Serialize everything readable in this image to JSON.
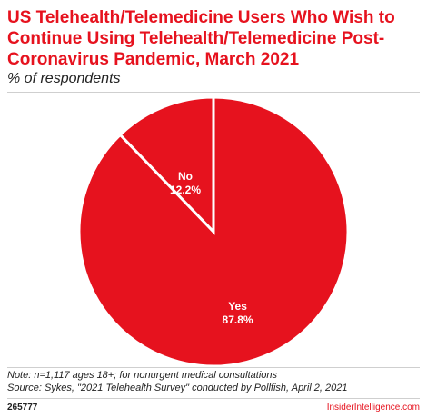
{
  "title": "US Telehealth/Telemedicine Users Who Wish to Continue Using Telehealth/Telemedicine Post-Coronavirus Pandemic, March 2021",
  "subtitle": "% of respondents",
  "note": "Note: n=1,117 ages 18+; for nonurgent medical consultations",
  "source": "Source: Sykes, \"2021 Telehealth Survey\" conducted by Pollfish, April 2, 2021",
  "chart_id": "265777",
  "brand": "InsiderIntelligence.com",
  "colors": {
    "slice": "#e6121e",
    "separator": "#ffffff"
  },
  "chart_data": {
    "type": "pie",
    "slices": [
      {
        "label": "Yes",
        "value": 87.8,
        "display": "87.8%"
      },
      {
        "label": "No",
        "value": 12.2,
        "display": "12.2%"
      }
    ]
  }
}
